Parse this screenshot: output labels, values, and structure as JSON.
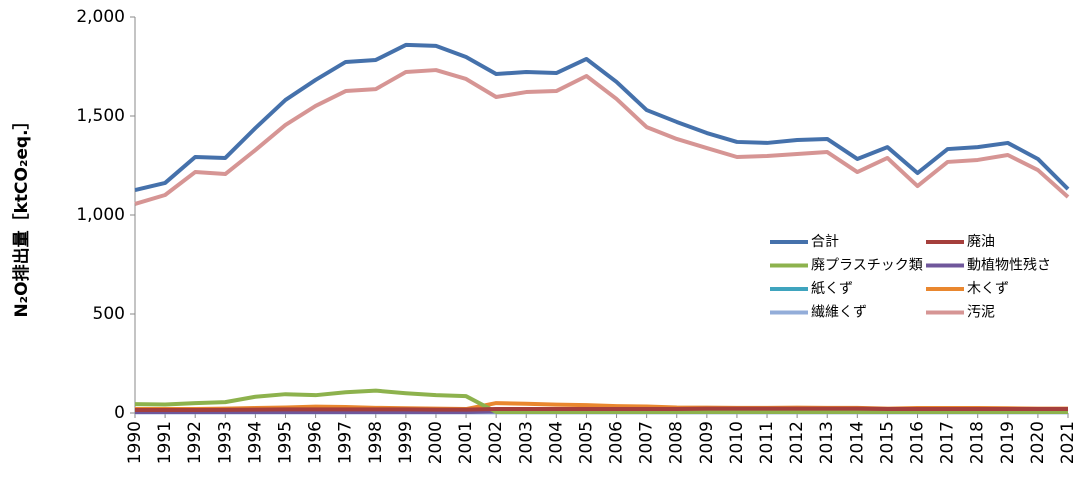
{
  "chart_data": {
    "type": "line",
    "y_label": "N₂O排出量［ktCO₂eq.］",
    "categories": [
      "1990",
      "1991",
      "1992",
      "1993",
      "1994",
      "1995",
      "1996",
      "1997",
      "1998",
      "1999",
      "2000",
      "2001",
      "2002",
      "2003",
      "2004",
      "2005",
      "2006",
      "2007",
      "2008",
      "2009",
      "2010",
      "2011",
      "2012",
      "2013",
      "2014",
      "2015",
      "2016",
      "2017",
      "2018",
      "2019",
      "2020",
      "2021"
    ],
    "ylim": [
      0,
      2000
    ],
    "yticks": [
      0,
      500,
      {
        "value": 1000,
        "label": "1,000"
      },
      {
        "value": 1500,
        "label": "1,500"
      },
      {
        "value": 2000,
        "label": "2,000"
      }
    ],
    "series": [
      {
        "name": "合計",
        "color": "#4571ab",
        "values": [
          1126,
          1162,
          1293,
          1288,
          1439,
          1581,
          1682,
          1773,
          1783,
          1859,
          1854,
          1798,
          1712,
          1722,
          1717,
          1788,
          1672,
          1530,
          1470,
          1414,
          1369,
          1364,
          1379,
          1384,
          1283,
          1343,
          1212,
          1333,
          1343,
          1364,
          1283,
          1131
        ]
      },
      {
        "name": "廃油",
        "color": "#a53f3c",
        "values": [
          15,
          15,
          15,
          16,
          17,
          18,
          18,
          18,
          18,
          18,
          17,
          17,
          20,
          20,
          20,
          20,
          20,
          20,
          20,
          22,
          22,
          22,
          22,
          22,
          22,
          20,
          20,
          20,
          20,
          20,
          20,
          20
        ]
      },
      {
        "name": "廃プラスチック類",
        "color": "#8db24d",
        "values": [
          45,
          43,
          50,
          55,
          82,
          95,
          90,
          105,
          113,
          100,
          90,
          85,
          5,
          5,
          5,
          5,
          5,
          5,
          5,
          5,
          5,
          5,
          5,
          5,
          5,
          5,
          5,
          5,
          5,
          5,
          5,
          5
        ]
      },
      {
        "name": "動植物性残さ",
        "color": "#6f579b",
        "values": [
          5,
          5,
          5,
          5,
          5,
          5,
          5,
          5,
          5,
          5,
          5,
          5,
          8,
          8,
          8,
          8,
          8,
          8,
          8,
          8,
          8,
          8,
          8,
          8,
          8,
          8,
          8,
          8,
          8,
          8,
          8,
          8
        ]
      },
      {
        "name": "紙くず",
        "color": "#3fa4be",
        "values": [
          5,
          5,
          5,
          5,
          5,
          5,
          5,
          5,
          5,
          5,
          5,
          5,
          12,
          12,
          11,
          10,
          10,
          9,
          9,
          9,
          8,
          8,
          8,
          8,
          8,
          8,
          8,
          8,
          8,
          8,
          8,
          8
        ]
      },
      {
        "name": "木くず",
        "color": "#e9872f",
        "values": [
          20,
          20,
          20,
          22,
          25,
          28,
          32,
          30,
          26,
          24,
          22,
          20,
          50,
          47,
          42,
          40,
          35,
          33,
          28,
          27,
          26,
          26,
          27,
          26,
          26,
          22,
          25,
          25,
          25,
          24,
          22,
          22
        ]
      },
      {
        "name": "繊維くず",
        "color": "#93add9",
        "values": [
          3,
          3,
          3,
          3,
          3,
          3,
          3,
          3,
          3,
          3,
          3,
          3,
          3,
          3,
          3,
          3,
          3,
          3,
          3,
          3,
          3,
          3,
          3,
          3,
          3,
          3,
          3,
          3,
          3,
          3,
          3,
          3
        ]
      },
      {
        "name": "汚泥",
        "color": "#d69594",
        "values": [
          1056,
          1101,
          1217,
          1207,
          1328,
          1455,
          1551,
          1626,
          1636,
          1722,
          1732,
          1687,
          1596,
          1621,
          1626,
          1702,
          1586,
          1444,
          1384,
          1338,
          1293,
          1298,
          1308,
          1318,
          1217,
          1288,
          1146,
          1268,
          1278,
          1303,
          1227,
          1091
        ]
      }
    ]
  }
}
